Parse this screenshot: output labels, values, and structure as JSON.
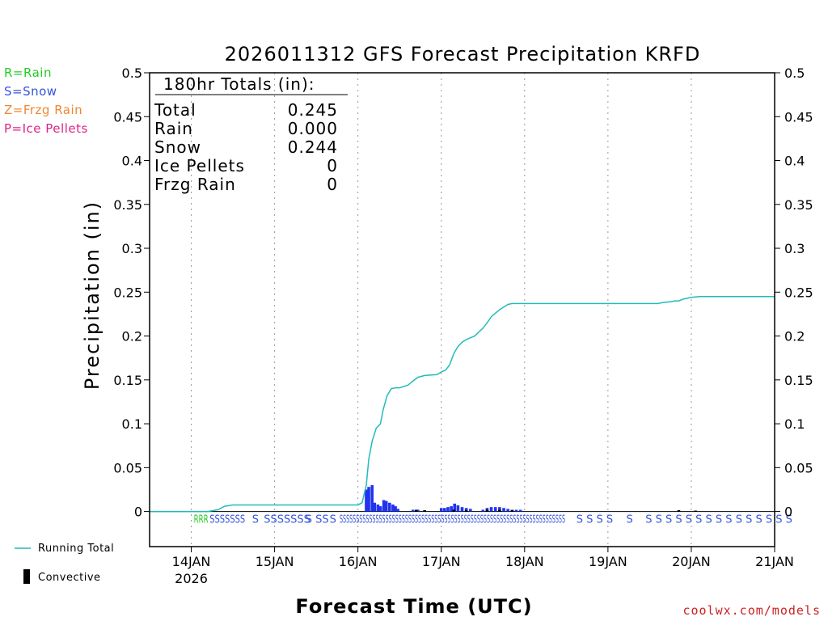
{
  "chart_data": {
    "type": "bar",
    "title": "2026011312 GFS Forecast Precipitation KRFD",
    "ylabel": "Precipitation (in)",
    "xlabel": "Forecast Time (UTC)",
    "ylim": [
      -0.04,
      0.5
    ],
    "xlim_days": [
      13.5,
      21.0
    ],
    "yticks": [
      "0",
      "0.05",
      "0.1",
      "0.15",
      "0.2",
      "0.25",
      "0.3",
      "0.35",
      "0.4",
      "0.45",
      "0.5"
    ],
    "ytick_values": [
      0,
      0.05,
      0.1,
      0.15,
      0.2,
      0.25,
      0.3,
      0.35,
      0.4,
      0.45,
      0.5
    ],
    "xticks": [
      {
        "day": 14,
        "label": "14JAN",
        "sub": "2026"
      },
      {
        "day": 15,
        "label": "15JAN",
        "sub": ""
      },
      {
        "day": 16,
        "label": "16JAN",
        "sub": ""
      },
      {
        "day": 17,
        "label": "17JAN",
        "sub": ""
      },
      {
        "day": 18,
        "label": "18JAN",
        "sub": ""
      },
      {
        "day": 19,
        "label": "19JAN",
        "sub": ""
      },
      {
        "day": 20,
        "label": "20JAN",
        "sub": ""
      },
      {
        "day": 21,
        "label": "21JAN",
        "sub": ""
      }
    ],
    "totals": {
      "header": "180hr Totals (in):",
      "rows": [
        {
          "label": "Total",
          "value": "0.245"
        },
        {
          "label": "Rain",
          "value": "0.000"
        },
        {
          "label": "Snow",
          "value": "0.244"
        },
        {
          "label": "Ice Pellets",
          "value": "0"
        },
        {
          "label": "Frzg Rain",
          "value": "0"
        }
      ]
    },
    "precip_key": [
      {
        "label": "R=Rain",
        "color": "#22cc22"
      },
      {
        "label": "S=Snow",
        "color": "#3355dd"
      },
      {
        "label": "Z=Frzg Rain",
        "color": "#ee8833"
      },
      {
        "label": "P=Ice Pellets",
        "color": "#dd2288"
      }
    ],
    "legend": [
      {
        "label": "Running Total",
        "color": "#22bbbb"
      },
      {
        "label": "Convective",
        "color": "#000000"
      }
    ],
    "credit": "coolwx.com/models",
    "colors": {
      "bars": "#2233ee",
      "running_total": "#22bbbb",
      "convective": "#000000",
      "credit": "#cc2222"
    },
    "running_total": {
      "x_days": [
        13.5,
        14.2,
        14.32,
        14.4,
        14.5,
        16.0,
        16.05,
        16.1,
        16.13,
        16.17,
        16.22,
        16.27,
        16.3,
        16.35,
        16.4,
        16.45,
        16.5,
        16.6,
        16.65,
        16.72,
        16.8,
        16.95,
        17.0,
        17.05,
        17.1,
        17.15,
        17.2,
        17.25,
        17.3,
        17.35,
        17.4,
        17.5,
        17.55,
        17.6,
        17.65,
        17.7,
        17.75,
        17.8,
        17.85,
        17.9,
        17.95,
        18.0,
        19.0,
        19.6,
        19.65,
        19.75,
        19.8,
        19.85,
        19.9,
        19.95,
        20.0,
        20.1,
        20.6,
        21.0
      ],
      "values": [
        0,
        0,
        0.002,
        0.006,
        0.0075,
        0.0075,
        0.01,
        0.03,
        0.06,
        0.08,
        0.095,
        0.1,
        0.115,
        0.132,
        0.14,
        0.141,
        0.141,
        0.144,
        0.148,
        0.153,
        0.155,
        0.156,
        0.159,
        0.161,
        0.167,
        0.18,
        0.188,
        0.193,
        0.196,
        0.198,
        0.2,
        0.209,
        0.215,
        0.222,
        0.226,
        0.23,
        0.233,
        0.236,
        0.237,
        0.237,
        0.237,
        0.237,
        0.237,
        0.237,
        0.238,
        0.239,
        0.24,
        0.24,
        0.242,
        0.243,
        0.244,
        0.245,
        0.245,
        0.245
      ]
    },
    "series": [
      {
        "name": "Precipitation (6hr)",
        "x_days": [
          16.1,
          16.13,
          16.17,
          16.2,
          16.24,
          16.27,
          16.31,
          16.34,
          16.38,
          16.42,
          16.45,
          16.48,
          16.66,
          16.72,
          16.8,
          17.0,
          17.04,
          17.08,
          17.12,
          17.16,
          17.2,
          17.25,
          17.3,
          17.35,
          17.5,
          17.55,
          17.6,
          17.65,
          17.7,
          17.75,
          17.8,
          17.85,
          17.9,
          17.95
        ],
        "values": [
          0.025,
          0.028,
          0.03,
          0.01,
          0.008,
          0.006,
          0.013,
          0.012,
          0.01,
          0.008,
          0.006,
          0.003,
          0.002,
          0.002,
          0.001,
          0.004,
          0.004,
          0.005,
          0.006,
          0.009,
          0.007,
          0.005,
          0.004,
          0.003,
          0.002,
          0.004,
          0.005,
          0.005,
          0.005,
          0.004,
          0.003,
          0.002,
          0.002,
          0.002
        ]
      },
      {
        "name": "Convective",
        "x_days": [
          16.7,
          16.8,
          17.15,
          17.3,
          17.55,
          17.7,
          17.85,
          19.85,
          20.05
        ],
        "values": [
          0.002,
          0.0015,
          0.002,
          0.0015,
          0.002,
          0.002,
          0.0015,
          0.0015,
          0.001
        ]
      }
    ],
    "ptype_markers": [
      {
        "x_day": 14.03,
        "label": "RRR",
        "color": "#22cc22"
      },
      {
        "x_day": 14.22,
        "label": "SSSSSSS",
        "color": "#3355dd"
      },
      {
        "x_day": 14.73,
        "label": "S",
        "color": "#3355dd"
      },
      {
        "x_day": 14.87,
        "label": "SS",
        "color": "#3355dd"
      },
      {
        "x_day": 15.03,
        "label": "SS",
        "color": "#3355dd"
      },
      {
        "x_day": 15.19,
        "label": "SSS",
        "color": "#3355dd"
      },
      {
        "x_day": 15.37,
        "label": "S",
        "color": "#3355dd"
      },
      {
        "x_day": 15.49,
        "label": "SS",
        "color": "#3355dd"
      },
      {
        "x_day": 15.66,
        "label": "S",
        "color": "#3355dd"
      },
      {
        "x_day": 15.78,
        "label": "SSSSSSSSSSSSSSSSSSSSSSSSSSSSSSSSSSSSSSSSSSSSSSSSSSSSSSSSSSSSSSSSSSSSS",
        "color": "#3355dd"
      },
      {
        "x_day": 18.62,
        "label": "S S S S",
        "color": "#3355dd"
      },
      {
        "x_day": 19.22,
        "label": "S",
        "color": "#3355dd"
      },
      {
        "x_day": 19.45,
        "label": "S S S S S S S S S S S S S S S",
        "color": "#3355dd"
      }
    ]
  }
}
